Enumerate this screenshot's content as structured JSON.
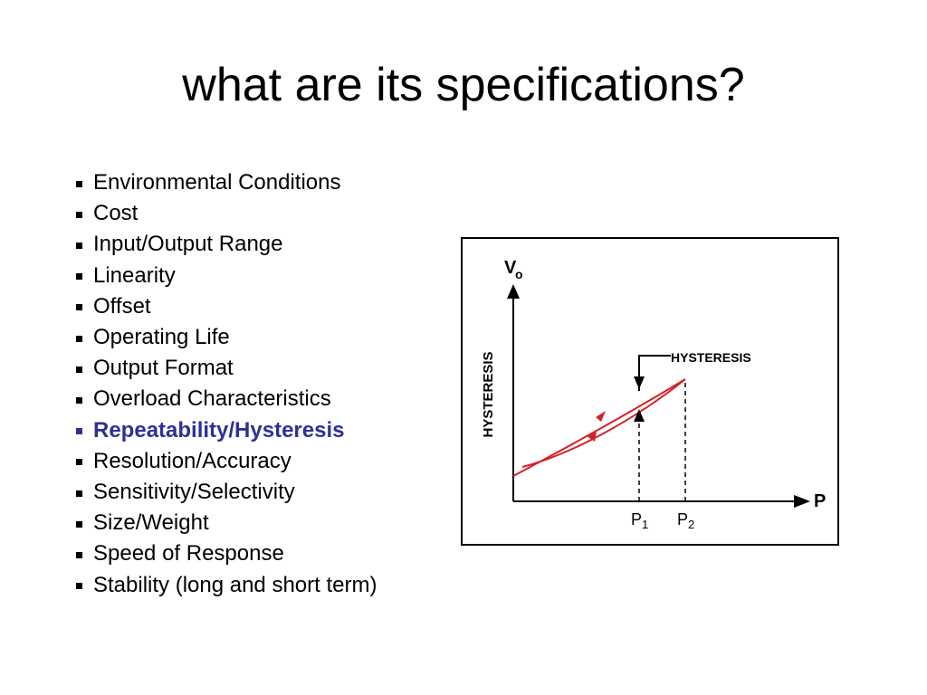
{
  "slide": {
    "title": "what are its specifications?"
  },
  "specifications": [
    {
      "label": "Environmental Conditions",
      "highlighted": false
    },
    {
      "label": "Cost",
      "highlighted": false
    },
    {
      "label": "Input/Output Range",
      "highlighted": false
    },
    {
      "label": "Linearity",
      "highlighted": false
    },
    {
      "label": "Offset",
      "highlighted": false
    },
    {
      "label": "Operating Life",
      "highlighted": false
    },
    {
      "label": "Output Format",
      "highlighted": false
    },
    {
      "label": "Overload Characteristics",
      "highlighted": false
    },
    {
      "label": "Repeatability/Hysteresis",
      "highlighted": true
    },
    {
      "label": "Resolution/Accuracy",
      "highlighted": false
    },
    {
      "label": "Sensitivity/Selectivity",
      "highlighted": false
    },
    {
      "label": "Size/Weight",
      "highlighted": false
    },
    {
      "label": "Speed of Response",
      "highlighted": false
    },
    {
      "label": "Stability (long and short term)",
      "highlighted": false
    }
  ],
  "figure": {
    "y_axis_symbol": "V",
    "y_axis_subscript": "o",
    "y_axis_side_label": "HYSTERESIS",
    "x_axis_label": "P",
    "annotation": "HYSTERESIS",
    "p1_symbol": "P",
    "p1_subscript": "1",
    "p2_symbol": "P",
    "p2_subscript": "2"
  },
  "colors": {
    "highlight_text": "#2e3192",
    "curve": "#d2232a"
  }
}
